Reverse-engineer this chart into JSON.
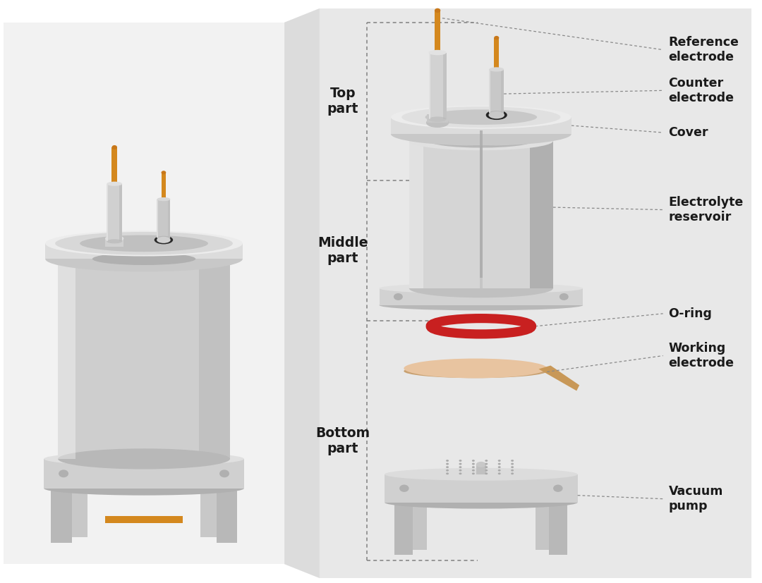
{
  "bg_white": "#ffffff",
  "bg_left": "#f2f2f2",
  "bg_right": "#e8e8e8",
  "gray_body": "#d0d0d0",
  "gray_light": "#e0e0e0",
  "gray_mid": "#b8b8b8",
  "gray_dark": "#909090",
  "gray_darker": "#707070",
  "gray_shadow": "#a8a8a8",
  "orange_pin": "#d4881e",
  "orange_pin2": "#c8781a",
  "red_oring": "#c82020",
  "peach_we": "#e8c4a0",
  "peach_we_edge": "#c8a070",
  "peach_tab": "#c89858",
  "black": "#1a1a1a",
  "dashed_color": "#888888",
  "connector_bg": "#dcdcdc",
  "labels": {
    "reference_electrode": "Reference\nelectrode",
    "counter_electrode": "Counter\nelectrode",
    "cover": "Cover",
    "electrolyte_reservoir": "Electrolyte\nreservoir",
    "o_ring": "O-ring",
    "working_electrode": "Working\nelectrode",
    "vacuum_pump": "Vacuum\npump",
    "top_part": "Top\npart",
    "middle_part": "Middle\npart",
    "bottom_part": "Bottom\npart"
  },
  "label_fontsize": 12.5,
  "part_label_fontsize": 13.5
}
